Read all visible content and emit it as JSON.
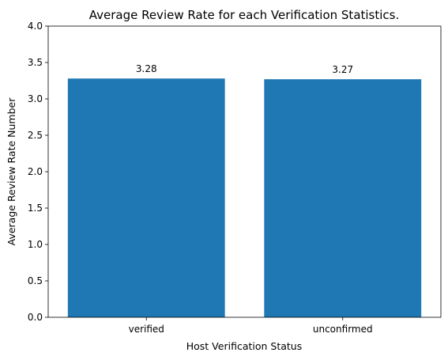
{
  "chart_data": {
    "type": "bar",
    "title": "Average Review Rate for each Verification Statistics.",
    "xlabel": "Host Verification Status",
    "ylabel": "Average Review Rate Number",
    "categories": [
      "verified",
      "unconfirmed"
    ],
    "values": [
      3.28,
      3.27
    ],
    "data_labels": [
      "3.28",
      "3.27"
    ],
    "ylim": [
      0,
      4
    ],
    "yticks": [
      0.0,
      0.5,
      1.0,
      1.5,
      2.0,
      2.5,
      3.0,
      3.5,
      4.0
    ],
    "ytick_labels": [
      "0.0",
      "0.5",
      "1.0",
      "1.5",
      "2.0",
      "2.5",
      "3.0",
      "3.5",
      "4.0"
    ],
    "grid": false,
    "legend": "none",
    "bar_color": "#1f77b4"
  }
}
